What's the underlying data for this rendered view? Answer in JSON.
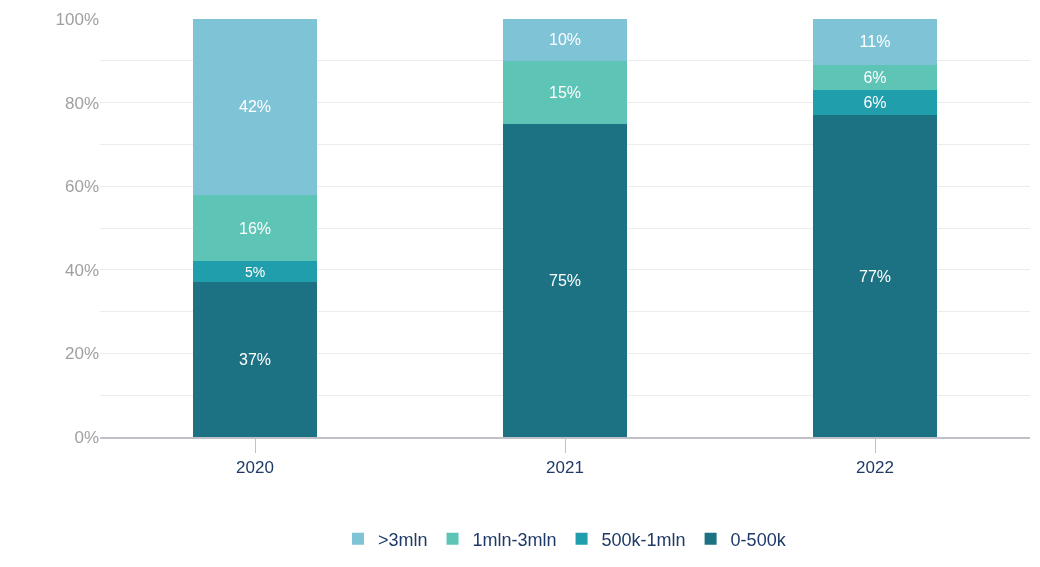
{
  "chart_data": {
    "type": "bar",
    "stacked": true,
    "categories": [
      "2020",
      "2021",
      "2022"
    ],
    "series": [
      {
        "name": "0-500k",
        "color": "#1c7282",
        "values": [
          37,
          75,
          77
        ],
        "value_labels": [
          "37%",
          "75%",
          "77%"
        ]
      },
      {
        "name": "500k-1mln",
        "color": "#219eab",
        "values": [
          5,
          0,
          6
        ],
        "value_labels": [
          "5%",
          null,
          "6%"
        ]
      },
      {
        "name": "1mln-3mln",
        "color": "#5ec4b6",
        "values": [
          16,
          15,
          6
        ],
        "value_labels": [
          "16%",
          "15%",
          "6%"
        ]
      },
      {
        "name": ">3mln",
        "color": "#7fc3d6",
        "values": [
          42,
          10,
          11
        ],
        "value_labels": [
          "42%",
          "10%",
          "11%"
        ]
      }
    ],
    "ylim": [
      0,
      100
    ],
    "yticks": [
      {
        "value": 0,
        "label": "0%"
      },
      {
        "value": 10,
        "label": null
      },
      {
        "value": 20,
        "label": "20%"
      },
      {
        "value": 30,
        "label": null
      },
      {
        "value": 40,
        "label": "40%"
      },
      {
        "value": 50,
        "label": null
      },
      {
        "value": 60,
        "label": "60%"
      },
      {
        "value": 70,
        "label": null
      },
      {
        "value": 80,
        "label": "80%"
      },
      {
        "value": 90,
        "label": null
      },
      {
        "value": 100,
        "label": "100%"
      }
    ],
    "grid": "y",
    "legend": "bottom"
  }
}
